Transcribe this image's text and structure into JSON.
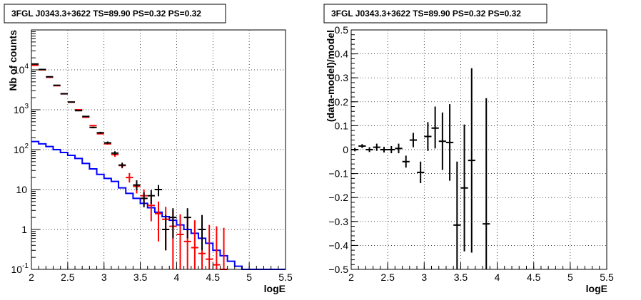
{
  "chart_data": [
    {
      "id": "counts",
      "type": "histogram",
      "title": "3FGL J0343.3+3622 TS=89.90 PS=0.32 PS=0.32",
      "xlabel": "logE",
      "ylabel": "Nb of counts",
      "xlim": [
        2,
        5.5
      ],
      "ylim": [
        0.1,
        100000
      ],
      "yscale": "log",
      "grid": true,
      "x_ticks": [
        "2",
        "2.5",
        "3",
        "3.5",
        "4",
        "4.5",
        "5",
        "5.5"
      ],
      "y_ticks": [
        {
          "value": 0.1,
          "base": "10",
          "exp": "-1",
          "label": ""
        },
        {
          "value": 1,
          "base": "1",
          "exp": "",
          "label": "1"
        },
        {
          "value": 10,
          "base": "10",
          "exp": "",
          "label": "10"
        },
        {
          "value": 100,
          "base": "10",
          "exp": "2",
          "label": ""
        },
        {
          "value": 1000,
          "base": "10",
          "exp": "3",
          "label": ""
        },
        {
          "value": 10000,
          "base": "10",
          "exp": "4",
          "label": ""
        }
      ],
      "series": [
        {
          "role": "background-model",
          "color": "#0000ff",
          "bin_edges": [
            2.0,
            2.1,
            2.2,
            2.3,
            2.4,
            2.5,
            2.6,
            2.7,
            2.8,
            2.9,
            3.0,
            3.1,
            3.2,
            3.3,
            3.4,
            3.5,
            3.6,
            3.7,
            3.8,
            3.9,
            4.0,
            4.1,
            4.2,
            4.3,
            4.4,
            4.5,
            4.6,
            4.7,
            4.8,
            4.9,
            5.0,
            5.1,
            5.2,
            5.3,
            5.4,
            5.5
          ],
          "values": [
            160,
            140,
            120,
            100,
            85,
            72,
            60,
            45,
            33,
            24,
            19,
            16,
            11,
            8,
            6,
            4.5,
            3.5,
            2.7,
            2.1,
            1.7,
            1.3,
            1.0,
            0.8,
            0.6,
            0.45,
            0.3,
            0.22,
            0.16,
            0.12,
            0.1,
            0.1,
            0.1,
            0.1,
            0.1,
            0.1
          ]
        },
        {
          "role": "model",
          "color": "#ff0000",
          "points": [
            {
              "x": 2.05,
              "y": 13000,
              "ylo": 13000,
              "yhi": 13000
            },
            {
              "x": 2.15,
              "y": 10000,
              "ylo": 10000,
              "yhi": 10000
            },
            {
              "x": 2.25,
              "y": 6500,
              "ylo": 6500,
              "yhi": 6500
            },
            {
              "x": 2.35,
              "y": 4000,
              "ylo": 4000,
              "yhi": 4000
            },
            {
              "x": 2.45,
              "y": 2500,
              "ylo": 2500,
              "yhi": 2500
            },
            {
              "x": 2.55,
              "y": 1550,
              "ylo": 1550,
              "yhi": 1550
            },
            {
              "x": 2.65,
              "y": 1000,
              "ylo": 1000,
              "yhi": 1000
            },
            {
              "x": 2.75,
              "y": 650,
              "ylo": 650,
              "yhi": 650
            },
            {
              "x": 2.85,
              "y": 400,
              "ylo": 400,
              "yhi": 400
            },
            {
              "x": 2.95,
              "y": 250,
              "ylo": 250,
              "yhi": 250
            },
            {
              "x": 3.05,
              "y": 140,
              "ylo": 140,
              "yhi": 140
            },
            {
              "x": 3.15,
              "y": 75,
              "ylo": 66,
              "yhi": 84
            },
            {
              "x": 3.25,
              "y": 40,
              "ylo": 34,
              "yhi": 47
            },
            {
              "x": 3.35,
              "y": 20,
              "ylo": 15,
              "yhi": 26
            },
            {
              "x": 3.45,
              "y": 12,
              "ylo": 8,
              "yhi": 17
            },
            {
              "x": 3.55,
              "y": 7,
              "ylo": 4,
              "yhi": 10
            },
            {
              "x": 3.65,
              "y": 4,
              "ylo": 1.6,
              "yhi": 6.5
            },
            {
              "x": 3.75,
              "y": 2.5,
              "ylo": 0.5,
              "yhi": 5
            },
            {
              "x": 3.85,
              "y": 1.8,
              "ylo": 0.3,
              "yhi": 3.7
            },
            {
              "x": 3.95,
              "y": 1.2,
              "ylo": 0.1,
              "yhi": 3
            },
            {
              "x": 4.05,
              "y": 0.75,
              "ylo": 0.1,
              "yhi": 2.4
            },
            {
              "x": 4.15,
              "y": 0.5,
              "ylo": 0.1,
              "yhi": 2
            },
            {
              "x": 4.25,
              "y": 0.35,
              "ylo": 0.1,
              "yhi": 1.7
            },
            {
              "x": 4.35,
              "y": 0.25,
              "ylo": 0.1,
              "yhi": 1.5
            },
            {
              "x": 4.45,
              "y": 0.18,
              "ylo": 0.1,
              "yhi": 1.3
            },
            {
              "x": 4.55,
              "y": 0.13,
              "ylo": 0.1,
              "yhi": 1.2
            },
            {
              "x": 4.65,
              "y": 0.1,
              "ylo": 0.1,
              "yhi": 1.1
            }
          ]
        },
        {
          "role": "data",
          "color": "#000000",
          "points": [
            {
              "x": 2.05,
              "y": 14000,
              "ylo": 13800,
              "yhi": 14200
            },
            {
              "x": 2.15,
              "y": 10200,
              "ylo": 10000,
              "yhi": 10400
            },
            {
              "x": 2.25,
              "y": 6700,
              "ylo": 6550,
              "yhi": 6850
            },
            {
              "x": 2.35,
              "y": 4100,
              "ylo": 4000,
              "yhi": 4200
            },
            {
              "x": 2.45,
              "y": 2520,
              "ylo": 2470,
              "yhi": 2570
            },
            {
              "x": 2.55,
              "y": 1560,
              "ylo": 1520,
              "yhi": 1600
            },
            {
              "x": 2.65,
              "y": 950,
              "ylo": 920,
              "yhi": 980
            },
            {
              "x": 2.75,
              "y": 680,
              "ylo": 655,
              "yhi": 705
            },
            {
              "x": 2.85,
              "y": 360,
              "ylo": 342,
              "yhi": 378
            },
            {
              "x": 2.95,
              "y": 265,
              "ylo": 249,
              "yhi": 281
            },
            {
              "x": 3.05,
              "y": 148,
              "ylo": 136,
              "yhi": 160
            },
            {
              "x": 3.15,
              "y": 82,
              "ylo": 73,
              "yhi": 91
            },
            {
              "x": 3.25,
              "y": 41,
              "ylo": 35,
              "yhi": 47
            },
            {
              "x": 3.45,
              "y": 13,
              "ylo": 9.5,
              "yhi": 17
            },
            {
              "x": 3.55,
              "y": 6,
              "ylo": 3.6,
              "yhi": 8.5
            },
            {
              "x": 3.65,
              "y": 7,
              "ylo": 4.4,
              "yhi": 9.7
            },
            {
              "x": 3.75,
              "y": 10,
              "ylo": 6.8,
              "yhi": 13
            },
            {
              "x": 3.85,
              "y": 1,
              "ylo": 0.3,
              "yhi": 2.3
            },
            {
              "x": 3.95,
              "y": 2,
              "ylo": 0.6,
              "yhi": 3.4
            },
            {
              "x": 4.15,
              "y": 2,
              "ylo": 0.6,
              "yhi": 3.4
            },
            {
              "x": 4.35,
              "y": 1,
              "ylo": 0.3,
              "yhi": 2.3
            }
          ]
        }
      ]
    },
    {
      "id": "residuals",
      "type": "scatter",
      "title": "3FGL J0343.3+3622 TS=89.90 PS=0.32 PS=0.32",
      "xlabel": "logE",
      "ylabel": "(data-model)/model",
      "xlim": [
        2,
        5.5
      ],
      "ylim": [
        -0.5,
        0.5
      ],
      "grid": true,
      "x_ticks": [
        "2",
        "2.5",
        "3",
        "3.5",
        "4",
        "4.5",
        "5",
        "5.5"
      ],
      "y_ticks": [
        "−0.5",
        "−0.4",
        "−0.3",
        "−0.2",
        "−0.1",
        "0",
        "0.1",
        "0.2",
        "0.3",
        "0.4",
        "0.5"
      ],
      "series": [
        {
          "role": "residuals",
          "color": "#000000",
          "points": [
            {
              "x": 2.05,
              "y": 0.0,
              "ylo": -0.007,
              "yhi": 0.007
            },
            {
              "x": 2.15,
              "y": 0.015,
              "ylo": 0.007,
              "yhi": 0.023
            },
            {
              "x": 2.25,
              "y": 0.0,
              "ylo": -0.01,
              "yhi": 0.01
            },
            {
              "x": 2.35,
              "y": 0.01,
              "ylo": -0.005,
              "yhi": 0.025
            },
            {
              "x": 2.45,
              "y": 0.0,
              "ylo": -0.012,
              "yhi": 0.012
            },
            {
              "x": 2.55,
              "y": 0.0,
              "ylo": -0.015,
              "yhi": 0.015
            },
            {
              "x": 2.65,
              "y": 0.005,
              "ylo": -0.015,
              "yhi": 0.025
            },
            {
              "x": 2.75,
              "y": -0.05,
              "ylo": -0.075,
              "yhi": -0.025
            },
            {
              "x": 2.85,
              "y": 0.04,
              "ylo": 0.01,
              "yhi": 0.07
            },
            {
              "x": 2.95,
              "y": -0.095,
              "ylo": -0.14,
              "yhi": -0.05
            },
            {
              "x": 3.05,
              "y": 0.055,
              "ylo": -0.005,
              "yhi": 0.115
            },
            {
              "x": 3.15,
              "y": 0.09,
              "ylo": 0.005,
              "yhi": 0.18
            },
            {
              "x": 3.25,
              "y": 0.035,
              "ylo": -0.085,
              "yhi": 0.155
            },
            {
              "x": 3.35,
              "y": 0.03,
              "ylo": -0.13,
              "yhi": 0.19
            },
            {
              "x": 3.45,
              "y": -0.315,
              "ylo": -0.5,
              "yhi": -0.05
            },
            {
              "x": 3.55,
              "y": -0.16,
              "ylo": -0.425,
              "yhi": 0.105
            },
            {
              "x": 3.65,
              "y": -0.045,
              "ylo": -0.43,
              "yhi": 0.34
            },
            {
              "x": 3.85,
              "y": -0.31,
              "ylo": -0.5,
              "yhi": 0.215
            }
          ]
        }
      ]
    }
  ]
}
